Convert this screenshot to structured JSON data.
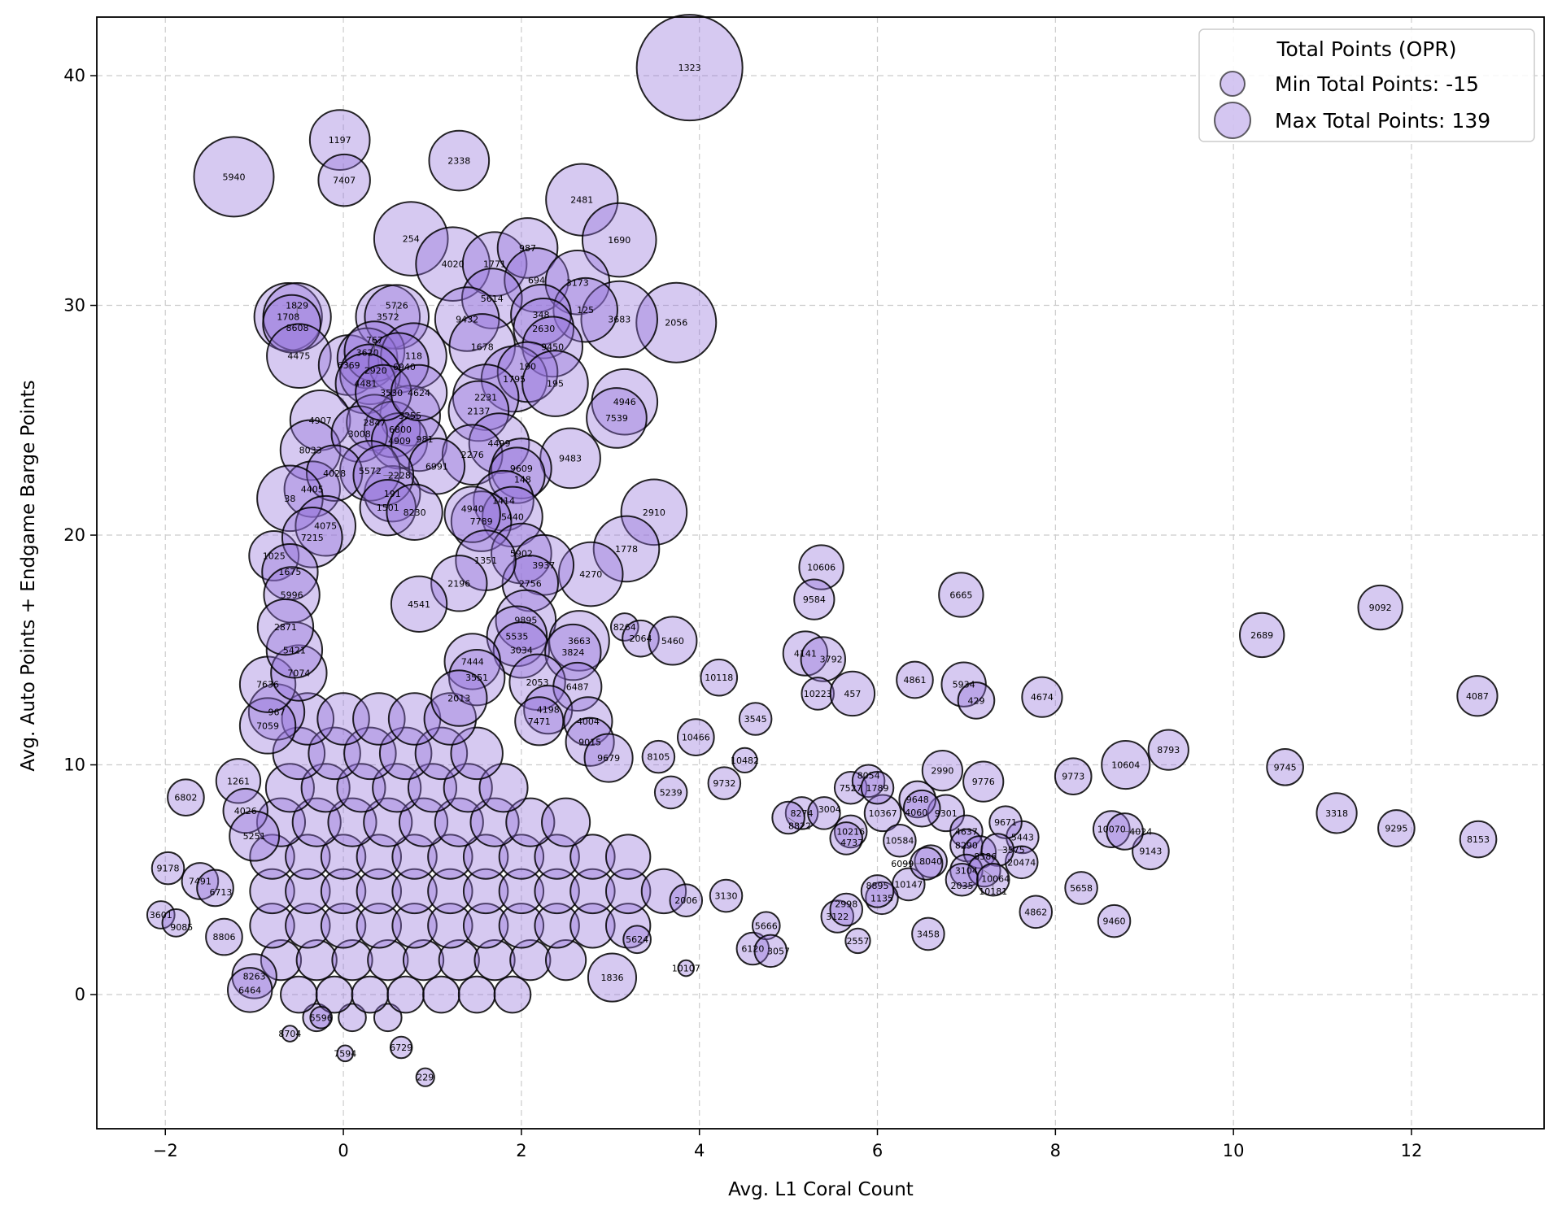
{
  "chart_data": {
    "type": "scatter",
    "title": "",
    "xlabel": "Avg. L1 Coral Count",
    "ylabel": "Avg. Auto Points + Endgame Barge Points",
    "xlim": [
      -2.77,
      13.49
    ],
    "ylim": [
      -5.84,
      42.55
    ],
    "xticks": [
      -2,
      0,
      2,
      4,
      6,
      8,
      10,
      12
    ],
    "yticks": [
      0,
      10,
      20,
      30,
      40
    ],
    "grid": true,
    "size_encoding": "Total Points (OPR)",
    "colors": {
      "fill": "#9370db",
      "edge": "#000000"
    },
    "legend": {
      "title": "Total Points (OPR)",
      "placement": "top-right",
      "entries": [
        {
          "label": "Min Total Points: -15",
          "value": -15
        },
        {
          "label": "Max Total Points: 139",
          "value": 139
        }
      ]
    },
    "points_fields": [
      "team",
      "l1_coral",
      "auto_plus_barge",
      "total_points"
    ],
    "points": [
      [
        "1323",
        3.89,
        40.35,
        139
      ],
      [
        "1197",
        -0.04,
        37.2,
        32
      ],
      [
        "7407",
        0.01,
        35.45,
        19
      ],
      [
        "5940",
        -1.23,
        35.6,
        71
      ],
      [
        "2338",
        1.3,
        36.3,
        32
      ],
      [
        "2481",
        2.68,
        34.6,
        54
      ],
      [
        "1690",
        3.1,
        32.85,
        58
      ],
      [
        "254",
        0.76,
        32.9,
        58
      ],
      [
        "4020",
        1.23,
        31.8,
        58
      ],
      [
        "1771",
        1.7,
        31.8,
        39
      ],
      [
        "987",
        2.07,
        32.5,
        32
      ],
      [
        "694",
        2.17,
        31.1,
        39
      ],
      [
        "3173",
        2.63,
        31.0,
        39
      ],
      [
        "5614",
        1.67,
        30.3,
        32
      ],
      [
        "2056",
        3.74,
        29.25,
        71
      ],
      [
        "3683",
        3.1,
        29.4,
        63
      ],
      [
        "125",
        2.72,
        29.8,
        39
      ],
      [
        "348",
        2.22,
        29.6,
        32
      ],
      [
        "2630",
        2.25,
        29.0,
        32
      ],
      [
        "9450",
        2.35,
        28.2,
        32
      ],
      [
        "9432",
        1.39,
        29.4,
        39
      ],
      [
        "1678",
        1.56,
        28.2,
        42
      ],
      [
        "3572",
        0.5,
        29.5,
        39
      ],
      [
        "5726",
        0.6,
        29.5,
        39
      ],
      [
        "1708",
        -0.62,
        29.5,
        46
      ],
      [
        "1829",
        -0.52,
        29.5,
        46
      ],
      [
        "8608",
        -0.58,
        29.2,
        28
      ],
      [
        "4475",
        -0.5,
        27.8,
        39
      ],
      [
        "6369",
        0.06,
        27.4,
        32
      ],
      [
        "3620",
        0.27,
        27.7,
        32
      ],
      [
        "767",
        0.35,
        28.0,
        32
      ],
      [
        "118",
        0.79,
        27.8,
        42
      ],
      [
        "6940",
        0.62,
        27.5,
        32
      ],
      [
        "2920",
        0.3,
        27.0,
        32
      ],
      [
        "4481",
        0.25,
        26.6,
        32
      ],
      [
        "1795",
        1.92,
        26.8,
        42
      ],
      [
        "190",
        2.07,
        27.1,
        32
      ],
      [
        "195",
        2.38,
        26.6,
        42
      ],
      [
        "4946",
        3.16,
        25.8,
        42
      ],
      [
        "7539",
        3.07,
        25.1,
        32
      ],
      [
        "2231",
        1.6,
        26.0,
        42
      ],
      [
        "2137",
        1.52,
        25.4,
        32
      ],
      [
        "4907",
        -0.26,
        25.0,
        32
      ],
      [
        "8033",
        -0.37,
        23.7,
        32
      ],
      [
        "9483",
        2.55,
        23.35,
        32
      ],
      [
        "2910",
        3.49,
        21.0,
        42
      ],
      [
        "1778",
        3.18,
        19.4,
        42
      ],
      [
        "4270",
        2.78,
        18.3,
        39
      ],
      [
        "1025",
        -0.78,
        19.1,
        16
      ],
      [
        "3255",
        0.75,
        25.2,
        32
      ],
      [
        "2847",
        0.35,
        24.9,
        25
      ],
      [
        "6800",
        0.55,
        24.6,
        25
      ],
      [
        "3008",
        0.18,
        24.4,
        25
      ],
      [
        "4909",
        0.63,
        24.1,
        25
      ],
      [
        "981",
        0.85,
        24.0,
        25
      ],
      [
        "3530",
        0.45,
        26.2,
        25
      ],
      [
        "4624",
        0.85,
        26.2,
        25
      ],
      [
        "4499",
        1.75,
        24.0,
        32
      ],
      [
        "2276",
        1.45,
        23.5,
        32
      ],
      [
        "6991",
        1.05,
        23.0,
        25
      ],
      [
        "9609",
        2.0,
        22.9,
        32
      ],
      [
        "148",
        1.95,
        22.6,
        25
      ],
      [
        "1414",
        1.8,
        21.5,
        32
      ],
      [
        "5440",
        1.9,
        20.8,
        32
      ],
      [
        "7789",
        1.55,
        20.6,
        32
      ],
      [
        "4940",
        1.45,
        20.9,
        25
      ],
      [
        "191",
        0.55,
        21.8,
        25
      ],
      [
        "4405",
        -0.35,
        22.0,
        25
      ],
      [
        "5572",
        0.3,
        22.8,
        32
      ],
      [
        "4028",
        -0.1,
        22.7,
        25
      ],
      [
        "2228",
        0.45,
        22.6,
        32
      ],
      [
        "1501",
        0.5,
        21.2,
        25
      ],
      [
        "8230",
        0.8,
        21.0,
        25
      ],
      [
        "38",
        -0.6,
        21.6,
        42
      ],
      [
        "4075",
        -0.2,
        20.4,
        32
      ],
      [
        "7215",
        -0.35,
        19.9,
        32
      ],
      [
        "5902",
        2.0,
        19.2,
        32
      ],
      [
        "3937",
        2.25,
        18.7,
        32
      ],
      [
        "2756",
        2.1,
        17.9,
        25
      ],
      [
        "1351",
        1.6,
        18.9,
        32
      ],
      [
        "2196",
        1.3,
        17.9,
        25
      ],
      [
        "4541",
        0.85,
        17.0,
        25
      ],
      [
        "1675",
        -0.6,
        18.4,
        25
      ],
      [
        "5996",
        -0.58,
        17.4,
        25
      ],
      [
        "9895",
        2.05,
        16.3,
        32
      ],
      [
        "5535",
        1.95,
        15.6,
        32
      ],
      [
        "3034",
        2.0,
        15.0,
        25
      ],
      [
        "3663",
        2.65,
        15.4,
        32
      ],
      [
        "3824",
        2.58,
        14.9,
        25
      ],
      [
        "2053",
        2.18,
        13.6,
        25
      ],
      [
        "6487",
        2.63,
        13.4,
        14
      ],
      [
        "4198",
        2.3,
        12.4,
        14
      ],
      [
        "7471",
        2.2,
        11.9,
        14
      ],
      [
        "4004",
        2.75,
        11.9,
        14
      ],
      [
        "9015",
        2.77,
        11.0,
        14
      ],
      [
        "9679",
        2.98,
        10.3,
        14
      ],
      [
        "7444",
        1.45,
        14.5,
        25
      ],
      [
        "3551",
        1.5,
        13.8,
        25
      ],
      [
        "2013",
        1.3,
        12.9,
        25
      ],
      [
        "967",
        -0.75,
        12.3,
        25
      ],
      [
        "7059",
        -0.85,
        11.7,
        25
      ],
      [
        "7636",
        -0.85,
        13.5,
        25
      ],
      [
        "7074",
        -0.5,
        14.0,
        25
      ],
      [
        "5421",
        -0.55,
        15.0,
        25
      ],
      [
        "2871",
        -0.65,
        16.0,
        25
      ],
      [
        "1261",
        -1.18,
        9.3,
        9
      ],
      [
        "4026",
        -1.1,
        8.0,
        9
      ],
      [
        "5251",
        -1.0,
        6.9,
        16
      ],
      [
        "6802",
        -1.77,
        8.58,
        0
      ],
      [
        "9178",
        -1.97,
        5.5,
        -4
      ],
      [
        "7491",
        -1.61,
        4.94,
        0
      ],
      [
        "6713",
        -1.44,
        4.64,
        0
      ],
      [
        "3601",
        -2.05,
        3.47,
        -8
      ],
      [
        "9085",
        -1.88,
        3.12,
        -8
      ],
      [
        "8806",
        -1.34,
        2.51,
        0
      ],
      [
        "8263",
        -1.0,
        0.8,
        9
      ],
      [
        "6464",
        -1.05,
        0.2,
        9
      ],
      [
        "229",
        0.92,
        -3.6,
        -14
      ],
      [
        "6729",
        0.65,
        -2.3,
        -12
      ],
      [
        "7594",
        0.02,
        -2.56,
        -15
      ],
      [
        "8704",
        -0.6,
        -1.7,
        -15
      ],
      [
        "5596",
        -0.25,
        -1.0,
        -12
      ],
      [
        "1836",
        3.02,
        0.74,
        14
      ],
      [
        "10107",
        3.85,
        1.15,
        -15
      ],
      [
        "5624",
        3.3,
        2.4,
        -8
      ],
      [
        "8105",
        3.54,
        10.35,
        -4
      ],
      [
        "10466",
        3.96,
        11.2,
        0
      ],
      [
        "10482",
        4.51,
        10.2,
        -10
      ],
      [
        "3545",
        4.63,
        12.0,
        -4
      ],
      [
        "10118",
        4.22,
        13.8,
        0
      ],
      [
        "8264",
        3.16,
        16.0,
        -8
      ],
      [
        "2064",
        3.34,
        15.5,
        0
      ],
      [
        "5460",
        3.7,
        15.4,
        14
      ],
      [
        "5239",
        3.68,
        8.8,
        -4
      ],
      [
        "9732",
        4.28,
        9.2,
        -4
      ],
      [
        "6120",
        4.6,
        2.0,
        -4
      ],
      [
        "3130",
        4.3,
        4.3,
        -4
      ],
      [
        "2006",
        3.85,
        4.1,
        -4
      ],
      [
        "10606",
        5.37,
        18.6,
        9
      ],
      [
        "9584",
        5.29,
        17.2,
        4
      ],
      [
        "6665",
        6.94,
        17.4,
        9
      ],
      [
        "9092",
        11.65,
        16.85,
        9
      ],
      [
        "2689",
        10.32,
        15.65,
        9
      ],
      [
        "4141",
        5.19,
        14.85,
        9
      ],
      [
        "3792",
        5.39,
        14.6,
        9
      ],
      [
        "10223",
        5.33,
        13.1,
        -4
      ],
      [
        "457",
        5.72,
        13.1,
        9
      ],
      [
        "4861",
        6.42,
        13.7,
        0
      ],
      [
        "5934",
        6.97,
        13.5,
        9
      ],
      [
        "429",
        7.11,
        12.8,
        0
      ],
      [
        "4674",
        7.85,
        12.95,
        4
      ],
      [
        "4087",
        12.74,
        13.0,
        4
      ],
      [
        "2990",
        6.73,
        9.75,
        4
      ],
      [
        "9776",
        7.19,
        9.27,
        4
      ],
      [
        "9773",
        8.2,
        9.5,
        0
      ],
      [
        "10604",
        8.79,
        10.0,
        14
      ],
      [
        "8793",
        9.27,
        10.65,
        4
      ],
      [
        "9745",
        10.58,
        9.9,
        0
      ],
      [
        "3318",
        11.16,
        7.9,
        4
      ],
      [
        "9295",
        11.83,
        7.24,
        0
      ],
      [
        "8153",
        12.75,
        6.76,
        0
      ],
      [
        "9143",
        9.07,
        6.24,
        0
      ],
      [
        "10070",
        8.63,
        7.2,
        0
      ],
      [
        "4024",
        8.78,
        7.1,
        0
      ],
      [
        "5443",
        7.63,
        6.85,
        -4
      ],
      [
        "9671",
        7.44,
        7.5,
        -4
      ],
      [
        "20474",
        7.62,
        5.76,
        -4
      ],
      [
        "5658",
        8.29,
        4.64,
        -4
      ],
      [
        "4862",
        7.78,
        3.6,
        -4
      ],
      [
        "9460",
        8.66,
        3.2,
        -4
      ],
      [
        "3458",
        6.57,
        2.64,
        -4
      ],
      [
        "10147",
        6.35,
        4.8,
        -4
      ],
      [
        "9301",
        6.77,
        7.9,
        0
      ],
      [
        "9648",
        6.45,
        8.5,
        0
      ],
      [
        "4060",
        6.5,
        8.1,
        0
      ],
      [
        "10367",
        6.06,
        7.9,
        0
      ],
      [
        "10584",
        6.25,
        6.7,
        -4
      ],
      [
        "2557",
        5.78,
        2.34,
        -10
      ],
      [
        "4637",
        7.0,
        7.1,
        -4
      ],
      [
        "8290",
        7.0,
        6.5,
        -4
      ],
      [
        "8586",
        7.15,
        6.2,
        -4
      ],
      [
        "3575",
        7.35,
        6.3,
        -4
      ],
      [
        "3104",
        7.0,
        5.4,
        -4
      ],
      [
        "10064",
        7.2,
        5.4,
        -4
      ],
      [
        "2035",
        6.95,
        5.0,
        -4
      ],
      [
        "10181",
        7.3,
        5.0,
        -4
      ],
      [
        "8040",
        6.6,
        5.8,
        -4
      ],
      [
        "6099",
        6.55,
        5.7,
        -4
      ],
      [
        "7527",
        5.7,
        9.0,
        -4
      ],
      [
        "8054",
        5.9,
        9.3,
        -4
      ],
      [
        "1789",
        6.0,
        9.0,
        -4
      ],
      [
        "8274",
        5.15,
        7.9,
        -4
      ],
      [
        "3004",
        5.4,
        7.9,
        -4
      ],
      [
        "10216",
        5.7,
        7.1,
        -4
      ],
      [
        "4737",
        5.65,
        6.8,
        -4
      ],
      [
        "3122",
        5.55,
        3.4,
        -4
      ],
      [
        "2998",
        5.65,
        3.7,
        -4
      ],
      [
        "1135",
        6.05,
        4.2,
        -4
      ],
      [
        "8895",
        6.0,
        4.5,
        -4
      ],
      [
        "8822",
        5.0,
        7.7,
        -4
      ],
      [
        "5666",
        4.75,
        3.0,
        -8
      ],
      [
        "3057",
        4.8,
        1.9,
        -4
      ]
    ],
    "dense_core_rows": [
      {
        "y": -1,
        "x": [
          -0.3,
          0.1,
          0.5
        ],
        "total_points": -8
      },
      {
        "y": 0,
        "x": [
          -0.5,
          -0.1,
          0.3,
          0.7,
          1.1,
          1.5,
          1.9
        ],
        "total_points": 0
      },
      {
        "y": 1.5,
        "x": [
          -0.7,
          -0.3,
          0.1,
          0.5,
          0.9,
          1.3,
          1.7,
          2.1,
          2.5
        ],
        "total_points": 4
      },
      {
        "y": 3,
        "x": [
          -0.8,
          -0.4,
          0,
          0.4,
          0.8,
          1.2,
          1.6,
          2.0,
          2.4,
          2.8,
          3.2
        ],
        "total_points": 9
      },
      {
        "y": 4.5,
        "x": [
          -0.8,
          -0.4,
          0,
          0.4,
          0.8,
          1.2,
          1.6,
          2.0,
          2.4,
          2.8,
          3.2,
          3.6
        ],
        "total_points": 9
      },
      {
        "y": 6,
        "x": [
          -0.8,
          -0.4,
          0,
          0.4,
          0.8,
          1.2,
          1.6,
          2.0,
          2.4,
          2.8,
          3.2
        ],
        "total_points": 9
      },
      {
        "y": 7.5,
        "x": [
          -0.7,
          -0.3,
          0.1,
          0.5,
          0.9,
          1.3,
          1.7,
          2.1,
          2.5
        ],
        "total_points": 14
      },
      {
        "y": 9,
        "x": [
          -0.6,
          -0.2,
          0.2,
          0.6,
          1.0,
          1.4,
          1.8
        ],
        "total_points": 14
      },
      {
        "y": 10.5,
        "x": [
          -0.5,
          -0.1,
          0.3,
          0.7,
          1.1,
          1.5
        ],
        "total_points": 19
      },
      {
        "y": 12,
        "x": [
          -0.4,
          0,
          0.4,
          0.8,
          1.2
        ],
        "total_points": 19
      }
    ]
  }
}
